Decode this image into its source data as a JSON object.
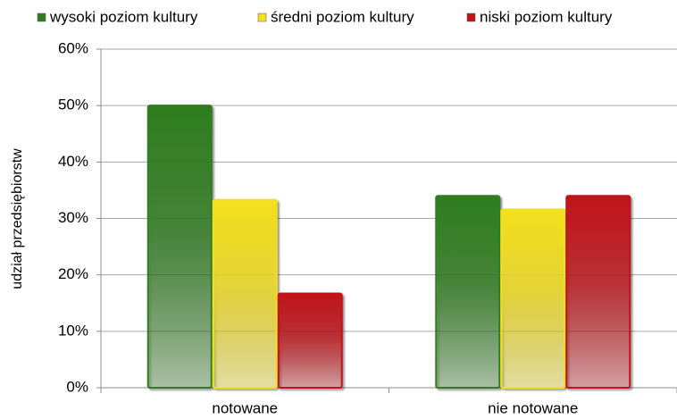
{
  "chart_data": {
    "type": "bar",
    "y_label": "udział przedsiębiorstw",
    "categories": [
      "notowane",
      "nie notowane"
    ],
    "series": [
      {
        "name": "wysoki poziom kultury",
        "color": "#2f7d1f",
        "values": [
          50,
          34
        ]
      },
      {
        "name": "średni poziom kultury",
        "color": "#f4e01c",
        "values": [
          33.3,
          31.6
        ]
      },
      {
        "name": "niski poziom kultury",
        "color": "#c0141a",
        "values": [
          16.7,
          34
        ]
      }
    ],
    "ylim": [
      0,
      60
    ],
    "yticks": [
      {
        "value": 0,
        "label": "0%"
      },
      {
        "value": 10,
        "label": "10%"
      },
      {
        "value": 20,
        "label": "20%"
      },
      {
        "value": 30,
        "label": "30%"
      },
      {
        "value": 40,
        "label": "40%"
      },
      {
        "value": 50,
        "label": "50%"
      },
      {
        "value": 60,
        "label": "60%"
      }
    ],
    "grid": true,
    "legend": "top"
  }
}
